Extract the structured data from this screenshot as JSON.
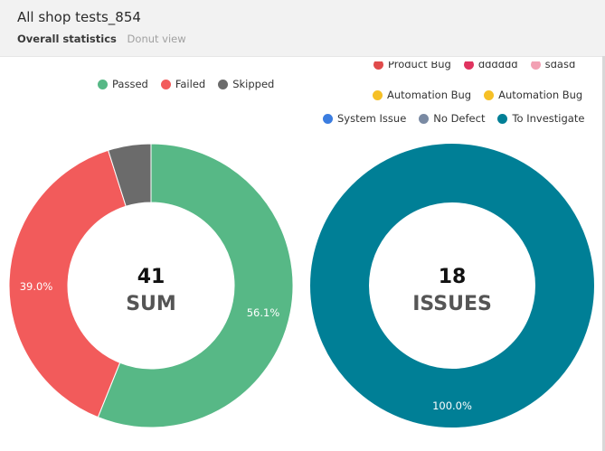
{
  "header": {
    "title": "All shop tests_854",
    "subtitle_main": "Overall statistics",
    "subtitle_view": "Donut view"
  },
  "colors": {
    "passed": "#57b886",
    "failed": "#f25b5b",
    "skipped": "#6b6b6b",
    "product_bug": "#e04b4b",
    "dddddd": "#e0335f",
    "sdasd": "#f2a0b3",
    "automation_bug": "#f6c026",
    "system_issue": "#3b7de0",
    "no_defect": "#7a8aa3",
    "to_investigate": "#007f96"
  },
  "launch_legend": [
    {
      "label": "Passed",
      "color": "#57b886"
    },
    {
      "label": "Failed",
      "color": "#f25b5b"
    },
    {
      "label": "Skipped",
      "color": "#6b6b6b"
    }
  ],
  "defect_legend": {
    "row1": [
      {
        "label": "Product Bug",
        "color": "#e04b4b"
      },
      {
        "label": "dddddd",
        "color": "#e0335f"
      },
      {
        "label": "sdasd",
        "color": "#f2a0b3"
      }
    ],
    "row2": [
      {
        "label": "Automation Bug",
        "color": "#f6c026"
      },
      {
        "label": "Automation Bug",
        "color": "#f6c026"
      }
    ],
    "row3": [
      {
        "label": "System Issue",
        "color": "#3b7de0"
      },
      {
        "label": "No Defect",
        "color": "#7a8aa3"
      },
      {
        "label": "To Investigate",
        "color": "#007f96"
      }
    ]
  },
  "chart_data": [
    {
      "type": "pie",
      "variant": "donut",
      "center_value": "41",
      "center_label": "SUM",
      "categories": [
        "Passed",
        "Failed",
        "Skipped"
      ],
      "values": [
        23,
        16,
        2
      ],
      "percent_labels": [
        "56.1%",
        "39.0%",
        ""
      ]
    },
    {
      "type": "pie",
      "variant": "donut",
      "center_value": "18",
      "center_label": "ISSUES",
      "categories": [
        "To Investigate"
      ],
      "values": [
        18
      ],
      "percent_labels": [
        "100.0%"
      ]
    }
  ]
}
